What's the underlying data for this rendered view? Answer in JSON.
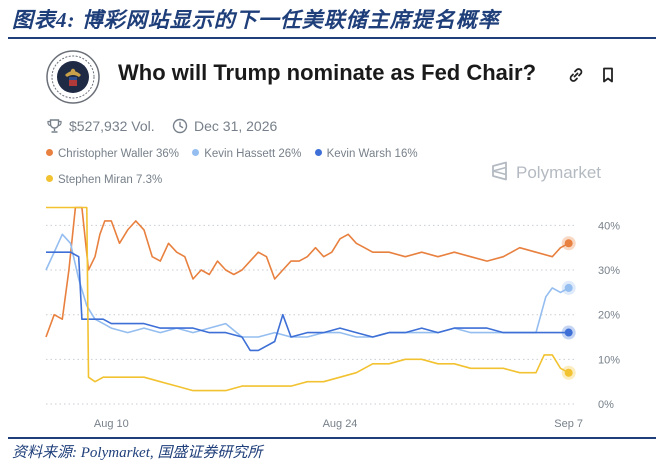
{
  "figure_title": "图表4:  博彩网站显示的下一任美联储主席提名概率",
  "source_note": "资料来源: Polymarket, 国盛证券研究所",
  "market": {
    "title": "Who will Trump nominate as Fed Chair?",
    "volume": "$527,932 Vol.",
    "end_date": "Dec 31, 2026",
    "brand": "Polymarket"
  },
  "colors": {
    "waller": "#e8803f",
    "hassett": "#94bdf0",
    "warsh": "#3d6fd6",
    "miran": "#f2c230",
    "grid": "#c9cdd2",
    "axis_text": "#77808a"
  },
  "legend": [
    {
      "label": "Christopher Waller 36%",
      "color": "#e8803f"
    },
    {
      "label": "Kevin Hassett 26%",
      "color": "#94bdf0"
    },
    {
      "label": "Kevin Warsh 16%",
      "color": "#3d6fd6"
    },
    {
      "label": "Stephen Miran 7.3%",
      "color": "#f2c230"
    }
  ],
  "chart_data": {
    "type": "line",
    "x_ticks": [
      "Aug 10",
      "Aug 24",
      "Sep 7"
    ],
    "y_ticks": [
      "0%",
      "10%",
      "20%",
      "30%",
      "40%"
    ],
    "ylim": [
      0,
      43
    ],
    "xlim": [
      "Aug 6",
      "Sep 8"
    ],
    "grid": true,
    "series": [
      {
        "name": "Christopher Waller",
        "color": "#e8803f",
        "x": [
          "Aug 6",
          "Aug 6.5",
          "Aug 7",
          "Aug 7.4",
          "Aug 7.8",
          "Aug 8.2",
          "Aug 8.6",
          "Aug 9",
          "Aug 9.3",
          "Aug 9.6",
          "Aug 10",
          "Aug 10.5",
          "Aug 11",
          "Aug 11.5",
          "Aug 12",
          "Aug 12.5",
          "Aug 13",
          "Aug 13.5",
          "Aug 14",
          "Aug 14.5",
          "Aug 15",
          "Aug 15.5",
          "Aug 16",
          "Aug 16.5",
          "Aug 17",
          "Aug 17.5",
          "Aug 18",
          "Aug 18.5",
          "Aug 19",
          "Aug 19.5",
          "Aug 20",
          "Aug 20.5",
          "Aug 21",
          "Aug 21.5",
          "Aug 22",
          "Aug 22.5",
          "Aug 23",
          "Aug 23.5",
          "Aug 24",
          "Aug 24.5",
          "Aug 25",
          "Aug 25.5",
          "Aug 26",
          "Aug 27",
          "Aug 28",
          "Aug 29",
          "Aug 30",
          "Aug 31",
          "Sep 1",
          "Sep 2",
          "Sep 3",
          "Sep 4",
          "Sep 5",
          "Sep 6",
          "Sep 6.5",
          "Sep 7"
        ],
        "values": [
          15,
          20,
          19,
          30,
          44,
          44,
          30,
          33,
          38,
          41,
          41,
          36,
          39,
          41,
          39,
          33,
          32,
          36,
          34,
          33,
          28,
          30,
          29,
          32,
          30,
          29,
          30,
          32,
          34,
          33,
          28,
          30,
          32,
          32,
          33,
          35,
          33,
          34,
          37,
          38,
          36,
          35,
          34,
          34,
          33,
          34,
          33,
          34,
          33,
          32,
          33,
          35,
          34,
          33,
          35,
          36
        ]
      },
      {
        "name": "Kevin Hassett",
        "color": "#94bdf0",
        "x": [
          "Aug 6",
          "Aug 6.5",
          "Aug 7",
          "Aug 7.5",
          "Aug 8",
          "Aug 8.5",
          "Aug 9",
          "Aug 9.5",
          "Aug 10",
          "Aug 11",
          "Aug 12",
          "Aug 13",
          "Aug 14",
          "Aug 15",
          "Aug 16",
          "Aug 17",
          "Aug 18",
          "Aug 19",
          "Aug 20",
          "Aug 21",
          "Aug 22",
          "Aug 23",
          "Aug 24",
          "Aug 25",
          "Aug 26",
          "Aug 27",
          "Aug 28",
          "Aug 29",
          "Aug 30",
          "Aug 31",
          "Sep 1",
          "Sep 2",
          "Sep 3",
          "Sep 4",
          "Sep 5",
          "Sep 5.3",
          "Sep 5.6",
          "Sep 6",
          "Sep 6.5",
          "Sep 7"
        ],
        "values": [
          30,
          34,
          38,
          36,
          28,
          22,
          19,
          18,
          17,
          16,
          17,
          16,
          17,
          16,
          17,
          18,
          15,
          15,
          16,
          15,
          15,
          16,
          16,
          15,
          15,
          16,
          16,
          16,
          16,
          17,
          16,
          16,
          16,
          16,
          16,
          20,
          24,
          26,
          25,
          26
        ]
      },
      {
        "name": "Kevin Warsh",
        "color": "#3d6fd6",
        "x": [
          "Aug 6",
          "Aug 6.5",
          "Aug 7",
          "Aug 7.5",
          "Aug 8",
          "Aug 8.2",
          "Aug 8.5",
          "Aug 9",
          "Aug 9.5",
          "Aug 10",
          "Aug 11",
          "Aug 12",
          "Aug 13",
          "Aug 14",
          "Aug 15",
          "Aug 16",
          "Aug 17",
          "Aug 18",
          "Aug 18.5",
          "Aug 19",
          "Aug 20",
          "Aug 20.5",
          "Aug 21",
          "Aug 22",
          "Aug 23",
          "Aug 24",
          "Aug 25",
          "Aug 26",
          "Aug 27",
          "Aug 28",
          "Aug 29",
          "Aug 30",
          "Aug 31",
          "Sep 1",
          "Sep 2",
          "Sep 3",
          "Sep 4",
          "Sep 5",
          "Sep 6",
          "Sep 7"
        ],
        "values": [
          34,
          34,
          34,
          34,
          33,
          19,
          19,
          19,
          19,
          18,
          18,
          18,
          17,
          17,
          17,
          16,
          16,
          15,
          12,
          12,
          14,
          20,
          15,
          16,
          16,
          17,
          16,
          15,
          16,
          16,
          17,
          16,
          17,
          17,
          17,
          16,
          16,
          16,
          16,
          16
        ]
      },
      {
        "name": "Stephen Miran",
        "color": "#f2c230",
        "x": [
          "Aug 6",
          "Aug 7",
          "Aug 8",
          "Aug 8.5",
          "Aug 8.6",
          "Aug 9",
          "Aug 9.5",
          "Aug 10",
          "Aug 11",
          "Aug 12",
          "Aug 13",
          "Aug 14",
          "Aug 15",
          "Aug 16",
          "Aug 17",
          "Aug 18",
          "Aug 19",
          "Aug 20",
          "Aug 21",
          "Aug 22",
          "Aug 23",
          "Aug 24",
          "Aug 25",
          "Aug 26",
          "Aug 27",
          "Aug 28",
          "Aug 29",
          "Aug 30",
          "Aug 31",
          "Sep 1",
          "Sep 2",
          "Sep 3",
          "Sep 4",
          "Sep 5",
          "Sep 5.5",
          "Sep 6",
          "Sep 6.5",
          "Sep 7"
        ],
        "values": [
          44,
          44,
          44,
          44,
          6,
          5,
          6,
          6,
          6,
          6,
          5,
          4,
          3,
          3,
          3,
          4,
          4,
          4,
          4,
          5,
          5,
          6,
          7,
          9,
          9,
          10,
          10,
          9,
          9,
          8,
          8,
          8,
          7,
          7,
          11,
          11,
          8,
          7
        ]
      }
    ]
  }
}
